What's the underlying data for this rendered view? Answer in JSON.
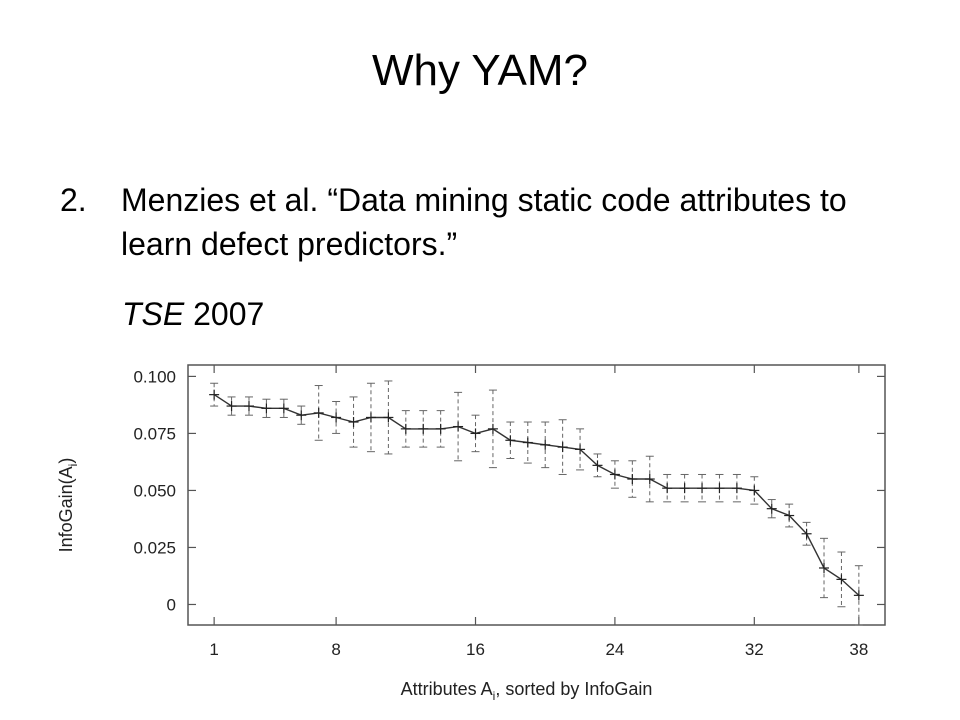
{
  "slide": {
    "title": "Why YAM?",
    "item_number": "2.",
    "item_text": "Menzies et al. “Data mining static code attributes to learn defect predictors.”",
    "venue_name": "TSE",
    "venue_year": "2007"
  },
  "chart_data": {
    "type": "line",
    "xlabel": "Attributes A",
    "xlabel_sub": "i",
    "xlabel_suffix": ", sorted by InfoGain",
    "ylabel": "InfoGain(A",
    "ylabel_sub": "i",
    "ylabel_suffix": ")",
    "xlim": [
      -0.5,
      39.5
    ],
    "ylim": [
      -0.009,
      0.105
    ],
    "x_ticks": [
      1,
      8,
      16,
      24,
      32,
      38
    ],
    "x_tick_labels": [
      "1",
      "8",
      "16",
      "24",
      "32",
      "38"
    ],
    "y_ticks": [
      0,
      0.025,
      0.05,
      0.075,
      0.1
    ],
    "y_tick_labels": [
      "0",
      "0.025",
      "0.050",
      "0.075",
      "0.100"
    ],
    "grid": false,
    "series": [
      {
        "x": [
          1,
          2,
          3,
          4,
          5,
          6,
          7,
          8,
          9,
          10,
          11,
          12,
          13,
          14,
          15,
          16,
          17,
          18,
          19,
          20,
          21,
          22,
          23,
          24,
          25,
          26,
          27,
          28,
          29,
          30,
          31,
          32,
          33,
          34,
          35,
          36,
          37,
          38
        ],
        "y": [
          0.092,
          0.087,
          0.087,
          0.086,
          0.086,
          0.083,
          0.084,
          0.082,
          0.08,
          0.082,
          0.082,
          0.077,
          0.077,
          0.077,
          0.078,
          0.075,
          0.077,
          0.072,
          0.071,
          0.07,
          0.069,
          0.068,
          0.061,
          0.057,
          0.055,
          0.055,
          0.051,
          0.051,
          0.051,
          0.051,
          0.051,
          0.05,
          0.042,
          0.039,
          0.031,
          0.016,
          0.011,
          0.004
        ],
        "err": [
          0.005,
          0.004,
          0.004,
          0.004,
          0.004,
          0.004,
          0.012,
          0.007,
          0.011,
          0.015,
          0.016,
          0.008,
          0.008,
          0.008,
          0.015,
          0.008,
          0.017,
          0.008,
          0.009,
          0.01,
          0.012,
          0.009,
          0.005,
          0.006,
          0.008,
          0.01,
          0.006,
          0.006,
          0.006,
          0.006,
          0.006,
          0.006,
          0.004,
          0.005,
          0.005,
          0.013,
          0.012,
          0.013
        ]
      }
    ]
  }
}
